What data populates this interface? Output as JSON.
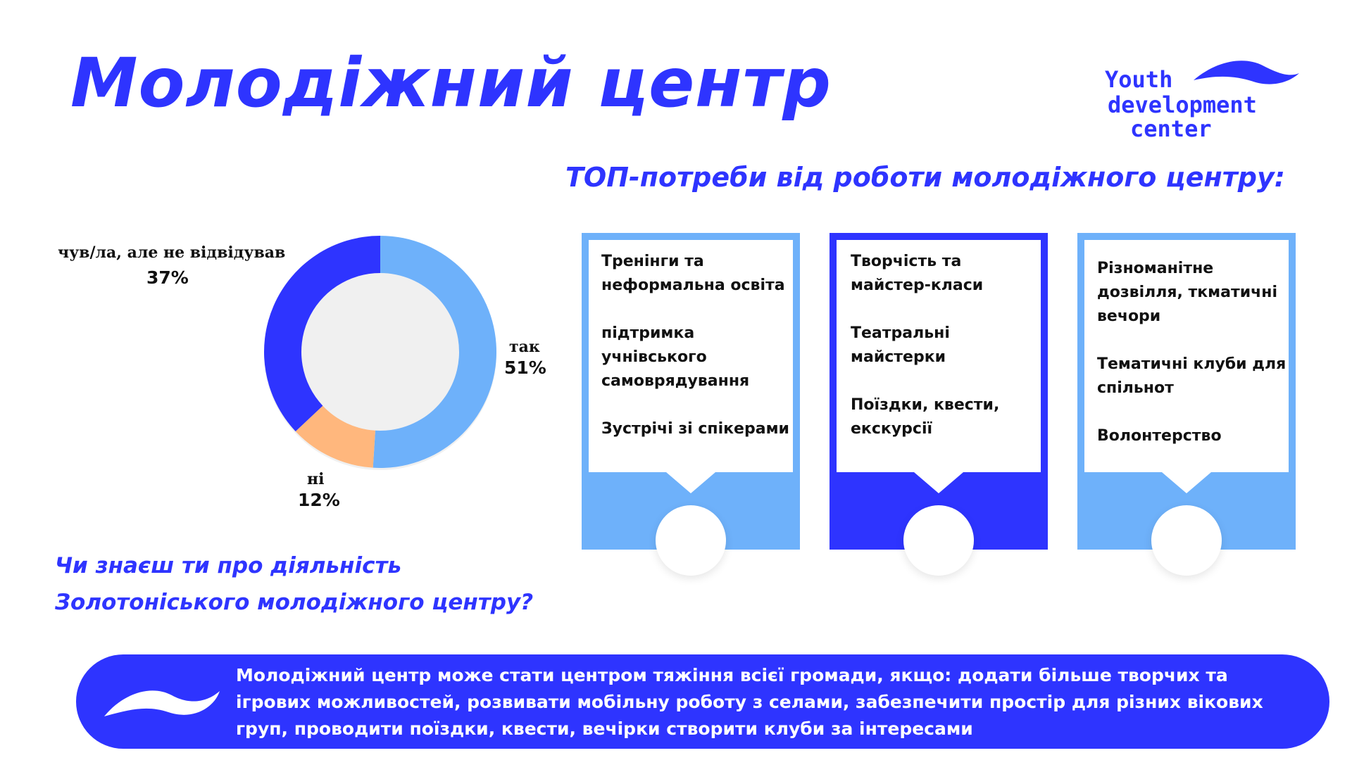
{
  "title": "Молодіжний центр",
  "logo": {
    "line1": "Youth",
    "line2": "development",
    "line3": "center"
  },
  "subtitle": "ТОП-потреби від роботи молодіжного центру:",
  "question": {
    "line1": "Чи знаєш ти про діяльність",
    "line2": "Золотоніського молодіжного центру?"
  },
  "chart_data": {
    "type": "pie",
    "donut": true,
    "title": "Чи знаєш ти про діяльність Золотоніського молодіжного центру?",
    "slices": [
      {
        "label": "так",
        "value": 51,
        "display": "51%",
        "color": "#6eb1fa"
      },
      {
        "label": "ні",
        "value": 12,
        "display": "12%",
        "color": "#ffb77d"
      },
      {
        "label": "чув/ла, але не відвідував",
        "value": 37,
        "display": "37%",
        "color": "#2e34ff"
      }
    ]
  },
  "cards": [
    {
      "color": "#6eb1fa",
      "items": [
        "Тренінги та неформальна освіта",
        "підтримка учнівського самоврядування",
        "Зустрічі зі спікерами"
      ]
    },
    {
      "color": "#2e34ff",
      "items": [
        "Творчість та майстер-класи",
        "Театральні майстерки",
        "Поїздки, квести, екскурсії"
      ]
    },
    {
      "color": "#6eb1fa",
      "items": [
        "Різноманітне дозвілля, ткматичні вечори",
        "Тематичні клуби для спільнот",
        "Волонтерство"
      ]
    }
  ],
  "banner": {
    "text": "Молодіжний центр може стати центром тяжіння всієї громади, якщо: додати більше творчих та ігрових можливостей, розвивати мобільну роботу з селами, забезпечити простір для різних вікових груп, проводити поїздки, квести, вечірки створити клуби за інтересами"
  },
  "colors": {
    "brand": "#2e34ff",
    "light_blue": "#6eb1fa",
    "peach": "#ffb77d"
  }
}
